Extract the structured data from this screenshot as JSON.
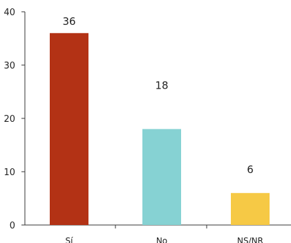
{
  "chart_data": {
    "type": "bar",
    "categories": [
      "Sí",
      "No",
      "NS/NR"
    ],
    "values": [
      36,
      18,
      6
    ],
    "data_labels": [
      "36",
      "18",
      "6"
    ],
    "colors": [
      "#b33215",
      "#86d2d3",
      "#f6c945"
    ],
    "ylim": [
      0,
      40
    ],
    "yticks": [
      0,
      10,
      20,
      30,
      40
    ],
    "ytick_labels": [
      "0",
      "10",
      "20",
      "30",
      "40"
    ],
    "title": "",
    "xlabel": "",
    "ylabel": "",
    "grid": false,
    "legend": "none"
  }
}
